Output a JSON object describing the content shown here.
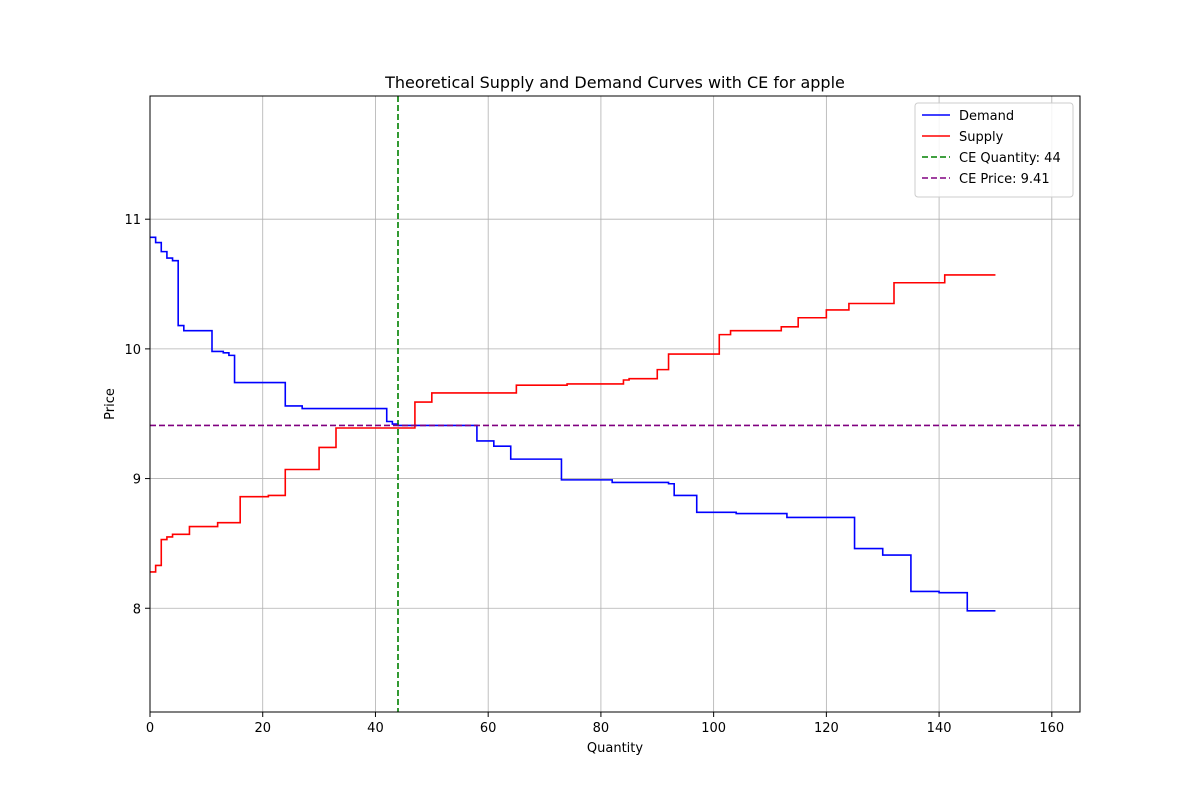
{
  "chart_data": {
    "type": "line",
    "title": "Theoretical Supply and Demand Curves with CE for apple",
    "xlabel": "Quantity",
    "ylabel": "Price",
    "xlim": [
      0,
      165
    ],
    "ylim": [
      7.2,
      11.95
    ],
    "xticks": [
      0,
      20,
      40,
      60,
      80,
      100,
      120,
      140,
      160
    ],
    "yticks": [
      8,
      9,
      10,
      11
    ],
    "grid": true,
    "legend_position": "top-right",
    "series": [
      {
        "name": "Demand",
        "color": "#0000ff",
        "style": "step",
        "x": [
          0,
          1,
          2,
          3,
          4,
          5,
          6,
          11,
          13,
          14,
          15,
          24,
          27,
          42,
          43,
          44,
          47,
          58,
          61,
          64,
          73,
          82,
          92,
          93,
          97,
          104,
          113,
          125,
          130,
          135,
          140,
          145,
          150
        ],
        "y": [
          10.86,
          10.82,
          10.75,
          10.7,
          10.68,
          10.18,
          10.14,
          9.98,
          9.97,
          9.95,
          9.74,
          9.56,
          9.54,
          9.44,
          9.42,
          9.41,
          9.41,
          9.29,
          9.25,
          9.15,
          8.99,
          8.97,
          8.96,
          8.87,
          8.74,
          8.73,
          8.7,
          8.46,
          8.41,
          8.13,
          8.12,
          7.98,
          7.98
        ]
      },
      {
        "name": "Supply",
        "color": "#ff0000",
        "style": "step",
        "x": [
          0,
          1,
          2,
          3,
          4,
          7,
          12,
          16,
          21,
          24,
          30,
          33,
          44,
          47,
          50,
          65,
          74,
          84,
          85,
          90,
          92,
          101,
          103,
          112,
          115,
          120,
          124,
          132,
          141,
          150
        ],
        "y": [
          8.28,
          8.33,
          8.53,
          8.55,
          8.57,
          8.63,
          8.66,
          8.86,
          8.87,
          9.07,
          9.24,
          9.39,
          9.39,
          9.59,
          9.66,
          9.72,
          9.73,
          9.76,
          9.77,
          9.84,
          9.96,
          10.11,
          10.14,
          10.17,
          10.24,
          10.3,
          10.35,
          10.51,
          10.57,
          10.57
        ]
      }
    ],
    "lines": [
      {
        "name": "CE Quantity: 44",
        "color": "#008000",
        "orientation": "vertical",
        "value": 44,
        "dash": true
      },
      {
        "name": "CE Price: 9.41",
        "color": "#800080",
        "orientation": "horizontal",
        "value": 9.41,
        "dash": true
      }
    ]
  }
}
